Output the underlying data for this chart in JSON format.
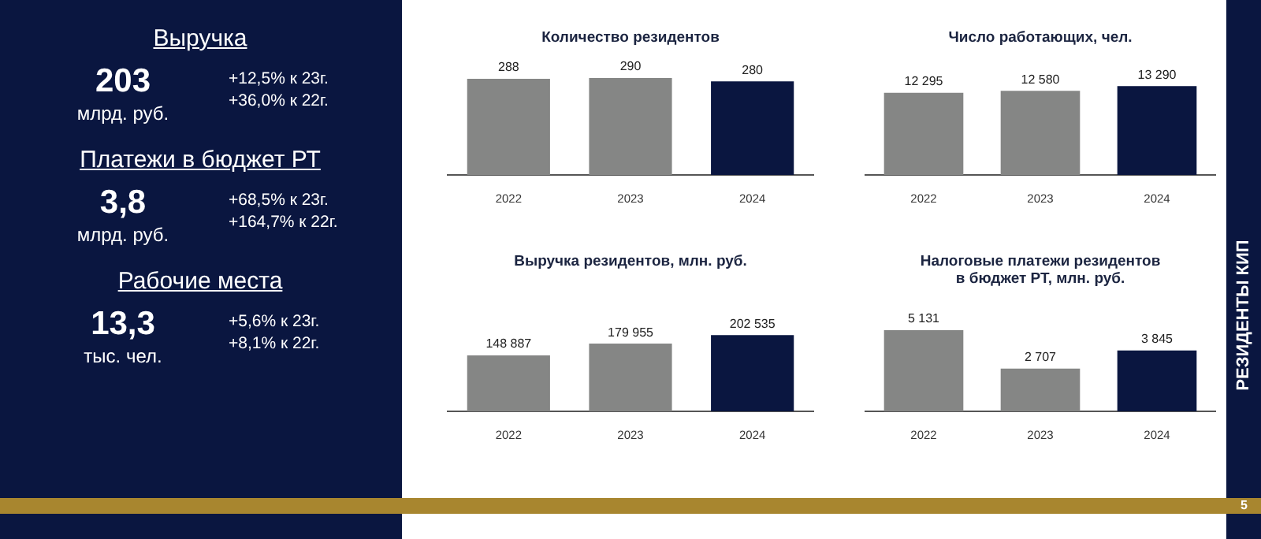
{
  "chart_data": [
    {
      "type": "other",
      "annotations": [
        "Выручка",
        "203",
        "млрд. руб.",
        "+12,5% к 23г.",
        "+36,0% к 22г.",
        "Платежи в бюджет РТ",
        "3,8",
        "млрд. руб.",
        "+68,5% к 23г.",
        "+164,7% к 22г.",
        "Рабочие места",
        "13,3",
        "тыс. чел.",
        "+5,6% к 23г.",
        "+8,1% к 22г.",
        "РЕЗИДЕНТЫ КИП",
        "5"
      ]
    },
    {
      "type": "bar",
      "title": "Количество резидентов",
      "categories": [
        "2022",
        "2023",
        "2024"
      ],
      "values": [
        288,
        290,
        280
      ],
      "colors": [
        "#858685",
        "#858685",
        "#0a1640"
      ],
      "value_labels": [
        "288",
        "290",
        "280"
      ]
    },
    {
      "type": "bar",
      "title": "Число работающих, чел.",
      "categories": [
        "2022",
        "2023",
        "2024"
      ],
      "values": [
        12295,
        12580,
        13290
      ],
      "colors": [
        "#858685",
        "#858685",
        "#0a1640"
      ],
      "value_labels": [
        "12 295",
        "12 580",
        "13 290"
      ]
    },
    {
      "type": "bar",
      "title": "Выручка резидентов, млн. руб.",
      "categories": [
        "2022",
        "2023",
        "2024"
      ],
      "values": [
        148887,
        179955,
        202535
      ],
      "colors": [
        "#858685",
        "#858685",
        "#0a1640"
      ],
      "value_labels": [
        "148 887",
        "179 955",
        "202 535"
      ]
    },
    {
      "type": "bar",
      "title": "Налоговые платежи резидентов в бюджет РТ, млн. руб.",
      "categories": [
        "2022",
        "2023",
        "2024"
      ],
      "values": [
        5131,
        2707,
        3845
      ],
      "colors": [
        "#858685",
        "#858685",
        "#0a1640"
      ],
      "value_labels": [
        "5 131",
        "2 707",
        "3 845"
      ]
    }
  ]
}
